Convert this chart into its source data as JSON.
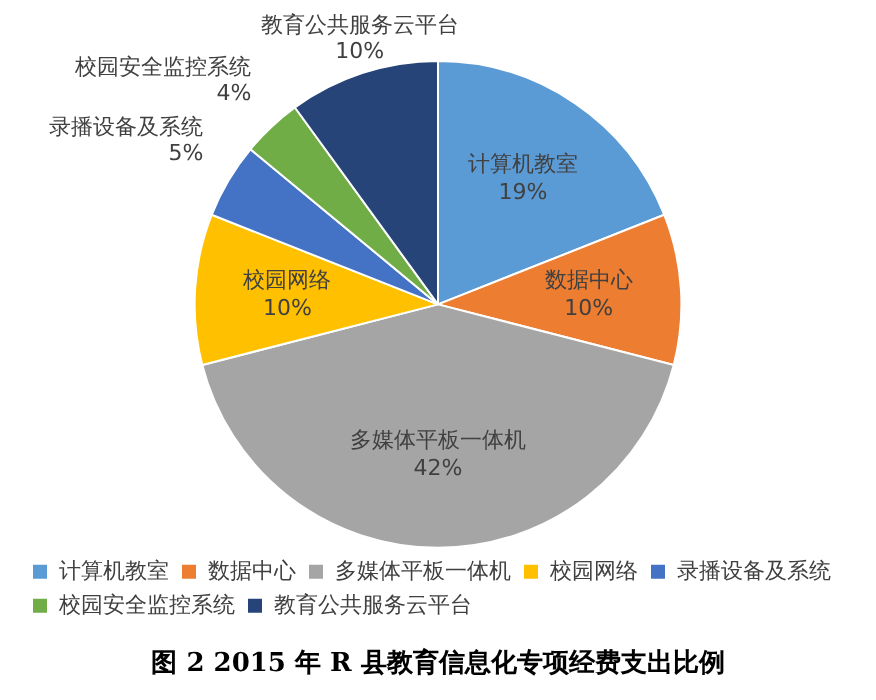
{
  "chart_data": {
    "type": "pie",
    "title": "图 2 2015 年 R 县教育信息化专项经费支出比例",
    "categories": [
      "计算机教室",
      "数据中心",
      "多媒体平板一体机",
      "校园网络",
      "录播设备及系统",
      "校园安全监控系统",
      "教育公共服务云平台"
    ],
    "values": [
      19,
      10,
      42,
      10,
      5,
      4,
      10
    ],
    "value_labels": [
      "19%",
      "10%",
      "42%",
      "10%",
      "5%",
      "4%",
      "10%"
    ],
    "colors": [
      "#5b9bd5",
      "#ed7d31",
      "#a5a5a5",
      "#ffc000",
      "#4472c4",
      "#70ad47",
      "#264478"
    ],
    "legend": "bottom"
  }
}
